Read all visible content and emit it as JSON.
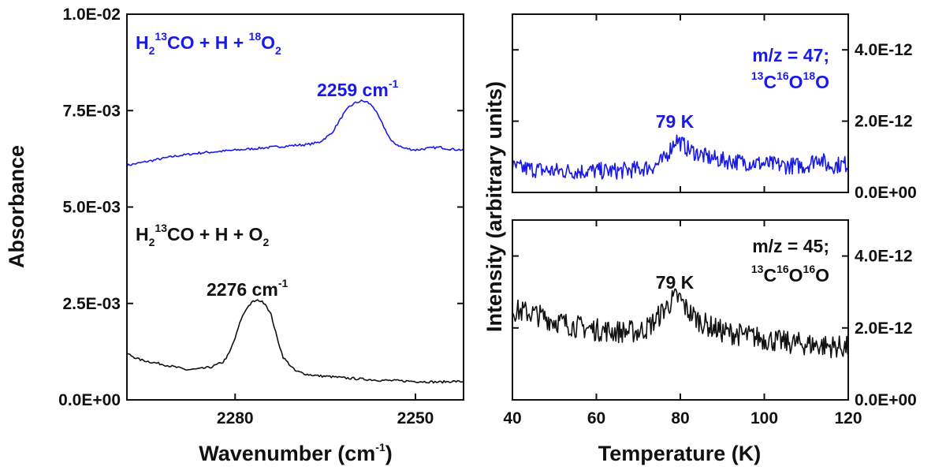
{
  "chart_data": [
    {
      "type": "line",
      "xlabel_main": "Wavenumber (cm",
      "xlabel_sup": "-1",
      "xlabel_end": ")",
      "ylabel": "Absorbance",
      "xlim": [
        2298,
        2242
      ],
      "ylim": [
        0,
        0.01
      ],
      "xticks": [
        2280,
        2250
      ],
      "xtick_labels": [
        "2280",
        "2250"
      ],
      "yticks": [
        0,
        0.0025,
        0.005,
        0.0075,
        0.01
      ],
      "ytick_labels": [
        "0.0E+00",
        "2.5E-03",
        "5.0E-03",
        "7.5E-03",
        "1.0E-02"
      ],
      "series": [
        {
          "name": "H2 13CO + H + 18O2",
          "color": "#1a1ae6",
          "x": [
            2298,
            2294,
            2290,
            2286,
            2282,
            2278,
            2274,
            2270,
            2268,
            2266,
            2264,
            2262,
            2261,
            2260,
            2259,
            2258,
            2257,
            2256,
            2254,
            2252,
            2250,
            2248,
            2246,
            2244,
            2242
          ],
          "y": [
            0.00608,
            0.0062,
            0.00632,
            0.0064,
            0.00645,
            0.0065,
            0.00655,
            0.0066,
            0.00662,
            0.00668,
            0.0069,
            0.0074,
            0.0076,
            0.0077,
            0.00775,
            0.00772,
            0.0076,
            0.0073,
            0.0067,
            0.00653,
            0.00648,
            0.00652,
            0.00655,
            0.0065,
            0.00648
          ]
        },
        {
          "name": "H2 13CO + H + O2",
          "color": "#111111",
          "x": [
            2298,
            2296,
            2294,
            2292,
            2290,
            2288,
            2286,
            2284,
            2282,
            2281,
            2280,
            2279,
            2278,
            2277,
            2276,
            2275,
            2274,
            2273,
            2272,
            2270,
            2268,
            2266,
            2264,
            2262,
            2260,
            2258,
            2256,
            2254,
            2252,
            2250,
            2248,
            2246,
            2244,
            2242
          ],
          "y": [
            0.0012,
            0.00105,
            0.00098,
            0.00092,
            0.00085,
            0.00078,
            0.0008,
            0.00085,
            0.00098,
            0.0012,
            0.0016,
            0.0021,
            0.0024,
            0.00255,
            0.00258,
            0.0025,
            0.0022,
            0.0016,
            0.0011,
            0.00075,
            0.00066,
            0.00062,
            0.0006,
            0.00057,
            0.00055,
            0.00053,
            0.00051,
            0.0005,
            0.00049,
            0.00048,
            0.00047,
            0.00046,
            0.00048,
            0.00047
          ]
        }
      ],
      "annotations": {
        "blue_label": {
          "pre": "H",
          "sub1": "2",
          "sup1": "13",
          "mid": "CO + H + ",
          "sup2": "18",
          "post": "O",
          "sub2": "2"
        },
        "black_label": {
          "pre": "H",
          "sub1": "2",
          "sup1": "13",
          "mid": "CO + H + O",
          "sub2": "2"
        },
        "blue_peak": {
          "text": "2259 cm",
          "sup": "-1"
        },
        "black_peak": {
          "text": "2276 cm",
          "sup": "-1"
        }
      }
    },
    {
      "type": "line",
      "xlabel": "Temperature (K)",
      "ylabel": "Intensity (arbitrary units)",
      "xlim": [
        40,
        120
      ],
      "xticks": [
        40,
        60,
        80,
        100,
        120
      ],
      "xtick_labels": [
        "40",
        "60",
        "80",
        "100",
        "120"
      ],
      "panels": [
        {
          "name": "m/z = 47",
          "color": "#1a1ae6",
          "ylim": [
            0,
            5e-12
          ],
          "yticks": [
            0,
            2e-12,
            4e-12
          ],
          "ytick_labels": [
            "0.0E+00",
            "2.0E-12",
            "4.0E-12"
          ],
          "label_line1": "m/z = 47;",
          "label_line2": {
            "sup1": "13",
            "a": "C",
            "sup2": "16",
            "b": "O",
            "sup3": "18",
            "c": "O"
          },
          "peak_label": "79 K",
          "x": [
            40,
            45,
            50,
            55,
            60,
            65,
            70,
            72,
            74,
            76,
            77,
            78,
            79,
            80,
            81,
            82,
            84,
            86,
            88,
            90,
            95,
            100,
            105,
            110,
            113,
            115,
            120
          ],
          "y": [
            7e-13,
            6.5e-13,
            6e-13,
            6e-13,
            6e-13,
            6e-13,
            6.5e-13,
            7e-13,
            7.5e-13,
            9e-13,
            1.1e-12,
            1.3e-12,
            1.5e-12,
            1.4e-12,
            1.3e-12,
            1.2e-12,
            1.1e-12,
            1e-12,
            9.5e-13,
            9e-13,
            8.5e-13,
            8e-13,
            7.5e-13,
            7.5e-13,
            1e-12,
            7.5e-13,
            8e-13
          ]
        },
        {
          "name": "m/z = 45",
          "color": "#111111",
          "ylim": [
            0,
            5e-12
          ],
          "yticks": [
            0,
            2e-12,
            4e-12
          ],
          "ytick_labels": [
            "0.0E+00",
            "2.0E-12",
            "4.0E-12"
          ],
          "label_line1": "m/z = 45;",
          "label_line2": {
            "sup1": "13",
            "a": "C",
            "sup2": "16",
            "b": "O",
            "sup3": "16",
            "c": "O"
          },
          "peak_label": "79 K",
          "x": [
            40,
            45,
            50,
            55,
            60,
            65,
            70,
            72,
            74,
            76,
            78,
            79,
            80,
            81,
            82,
            84,
            86,
            88,
            90,
            95,
            100,
            105,
            110,
            115,
            120
          ],
          "y": [
            2.5e-12,
            2.4e-12,
            2.2e-12,
            2.05e-12,
            1.95e-12,
            1.9e-12,
            1.9e-12,
            2e-12,
            2.2e-12,
            2.5e-12,
            2.75e-12,
            2.85e-12,
            2.8e-12,
            2.6e-12,
            2.45e-12,
            2.25e-12,
            2.1e-12,
            2e-12,
            1.9e-12,
            1.8e-12,
            1.7e-12,
            1.6e-12,
            1.55e-12,
            1.5e-12,
            1.45e-12
          ]
        }
      ]
    }
  ]
}
